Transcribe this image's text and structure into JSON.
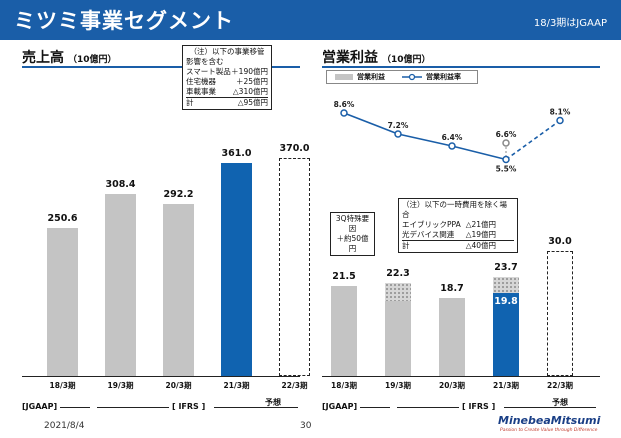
{
  "header": {
    "title": "ミツミ事業セグメント",
    "note": "18/3期はJGAAP"
  },
  "colors": {
    "brand": "#1a5ea8",
    "bar_gray": "#c4c4c4",
    "bar_blue": "#1063b0"
  },
  "sales": {
    "title": "売上高",
    "unit": "（10億円）",
    "note": {
      "line1": "（注）以下の事業移管",
      "line2": "影響を含む",
      "rows": [
        {
          "label": "スマート製品",
          "value": "＋190億円"
        },
        {
          "label": "住宅機器",
          "value": "＋25億円"
        },
        {
          "label": "車載事業",
          "value": "△310億円"
        },
        {
          "label": "計",
          "value": "△95億円"
        }
      ]
    }
  },
  "profit": {
    "title": "営業利益",
    "unit": "（10億円）",
    "legend": {
      "bar": "営業利益",
      "line": "営業利益率"
    },
    "note_3q": {
      "line1": "3Q特殊要因",
      "line2": "＋約50億円"
    },
    "note_cost": {
      "line1": "（注）以下の一時費用を除く場合",
      "rows": [
        {
          "label": "エイブリックPPA",
          "value": "△21億円"
        },
        {
          "label": "光デバイス関連",
          "value": "△19億円"
        },
        {
          "label": "計",
          "value": "△40億円"
        }
      ]
    }
  },
  "bracket": {
    "jgaap": "[JGAAP]",
    "ifrs": "[ IFRS ]",
    "forecast": "予想"
  },
  "footer": {
    "date": "2021/8/4",
    "page": "30",
    "logo": "MinebeaMitsumi",
    "tagline": "Passion to Create Value through Difference"
  },
  "chart_data": [
    {
      "type": "bar",
      "title": "売上高（10億円）",
      "categories": [
        "18/3期",
        "19/3期",
        "20/3期",
        "21/3期",
        "22/3期"
      ],
      "values": [
        250.6,
        308.4,
        292.2,
        361.0,
        370.0
      ],
      "value_labels": [
        "250.6",
        "308.4",
        "292.2",
        "361.0",
        "370.0"
      ],
      "styles": [
        "gray",
        "gray",
        "gray",
        "blue",
        "forecast"
      ],
      "ylim": [
        0,
        400
      ]
    },
    {
      "type": "bar",
      "title": "営業利益（10億円）",
      "categories": [
        "18/3期",
        "19/3期",
        "20/3期",
        "21/3期",
        "22/3期"
      ],
      "values": [
        21.5,
        22.3,
        18.7,
        23.7,
        30.0
      ],
      "value_labels": [
        "21.5",
        "22.3",
        "18.7",
        "23.7",
        "30.0"
      ],
      "inner_value": {
        "index": 3,
        "value": 19.8,
        "label": "19.8"
      },
      "hatched_top": {
        "19/3期": 4.4,
        "21/3期": 3.9
      },
      "styles": [
        "gray",
        "gray",
        "gray",
        "blue",
        "forecast"
      ],
      "ylim": [
        0,
        35
      ]
    },
    {
      "type": "line",
      "title": "営業利益率",
      "categories": [
        "18/3期",
        "19/3期",
        "20/3期",
        "21/3期",
        "22/3期"
      ],
      "values": [
        8.6,
        7.2,
        6.4,
        5.5,
        8.1
      ],
      "value_labels": [
        "8.6%",
        "7.2%",
        "6.4%",
        "5.5%",
        "8.1%"
      ],
      "alt_point": {
        "index": 3,
        "value": 6.6,
        "label": "6.6%"
      },
      "ylim": [
        4,
        10
      ]
    }
  ]
}
